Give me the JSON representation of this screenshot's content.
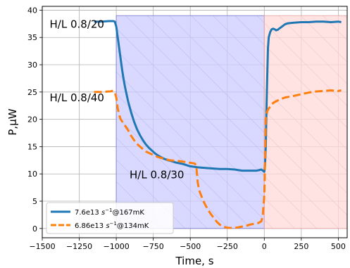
{
  "chart_data": {
    "type": "line",
    "xlabel": "Time, s",
    "ylabel": "P,μW",
    "xlim": [
      -1500,
      560
    ],
    "ylim": [
      -1.7,
      40.7
    ],
    "xticks": [
      -1500,
      -1250,
      -1000,
      -750,
      -500,
      -250,
      0,
      250,
      500
    ],
    "xtick_labels": [
      "−1500",
      "−1250",
      "−1000",
      "−750",
      "−500",
      "−250",
      "0",
      "250",
      "500"
    ],
    "yticks": [
      0,
      5,
      10,
      15,
      20,
      25,
      30,
      35,
      40
    ],
    "ytick_labels": [
      "0",
      "5",
      "10",
      "15",
      "20",
      "25",
      "30",
      "35",
      "40"
    ],
    "grid": true,
    "legend_position": "lower-left",
    "shaded_regions": [
      {
        "x0": -1000,
        "x1": 0,
        "y0": 0,
        "y1": 39,
        "color": "#ccccff",
        "hatch": true
      },
      {
        "x0": 0,
        "x1": 560,
        "y0": 0,
        "y1": 39,
        "color": "#ffd9d9",
        "hatch": true
      }
    ],
    "annotations": [
      {
        "text": "H/L 0.8/20",
        "x": -1450,
        "y": 36.8
      },
      {
        "text": "H/L 0.8/40",
        "x": -1450,
        "y": 23.3
      },
      {
        "text": "H/L 0.8/30",
        "x": -910,
        "y": 9.2
      }
    ],
    "series": [
      {
        "name_prefix": "7.6e13 ",
        "name_unit": "s",
        "name_exp": "−1",
        "name_suffix": "@167mK",
        "color": "#1f77b4",
        "dashed": false,
        "x": [
          -1150,
          -1100,
          -1050,
          -1030,
          -1020,
          -1010,
          -1000,
          -990,
          -980,
          -970,
          -960,
          -950,
          -940,
          -920,
          -900,
          -880,
          -860,
          -840,
          -820,
          -800,
          -780,
          -760,
          -740,
          -720,
          -700,
          -680,
          -650,
          -620,
          -600,
          -550,
          -500,
          -450,
          -400,
          -350,
          -300,
          -250,
          -200,
          -150,
          -100,
          -50,
          -20,
          -10,
          0,
          5,
          10,
          15,
          20,
          25,
          30,
          40,
          50,
          60,
          70,
          80,
          90,
          100,
          120,
          140,
          160,
          200,
          250,
          300,
          350,
          400,
          450,
          500,
          520
        ],
        "y": [
          37.9,
          37.9,
          38.0,
          38.0,
          38.0,
          37.9,
          37.0,
          35.0,
          33.0,
          31.0,
          29.0,
          27.3,
          25.8,
          23.3,
          21.3,
          19.6,
          18.2,
          17.1,
          16.2,
          15.4,
          14.8,
          14.3,
          13.8,
          13.4,
          13.1,
          12.8,
          12.5,
          12.3,
          12.1,
          11.8,
          11.4,
          11.2,
          11.1,
          11.0,
          10.9,
          10.9,
          10.8,
          10.6,
          10.6,
          10.6,
          10.8,
          10.6,
          10.4,
          11.5,
          15.0,
          22.0,
          28.0,
          33.0,
          35.0,
          36.0,
          36.5,
          36.6,
          36.5,
          36.3,
          36.4,
          36.6,
          37.0,
          37.4,
          37.6,
          37.7,
          37.8,
          37.8,
          37.9,
          37.9,
          37.8,
          37.9,
          37.8
        ]
      },
      {
        "name_prefix": "6.86e13 ",
        "name_unit": "s",
        "name_exp": "−1",
        "name_suffix": "@134mK",
        "color": "#ff7f0e",
        "dashed": true,
        "x": [
          -1150,
          -1100,
          -1050,
          -1040,
          -1030,
          -1020,
          -1010,
          -1000,
          -990,
          -980,
          -970,
          -960,
          -940,
          -920,
          -900,
          -880,
          -860,
          -840,
          -800,
          -760,
          -720,
          -680,
          -640,
          -600,
          -560,
          -520,
          -490,
          -470,
          -460,
          -455,
          -450,
          -440,
          -420,
          -400,
          -380,
          -360,
          -340,
          -320,
          -300,
          -280,
          -260,
          -240,
          -220,
          -200,
          -180,
          -160,
          -140,
          -120,
          -100,
          -80,
          -60,
          -40,
          -20,
          -10,
          0,
          5,
          10,
          20,
          30,
          40,
          60,
          80,
          100,
          140,
          200,
          250,
          300,
          350,
          400,
          450,
          500,
          520
        ],
        "y": [
          25.0,
          25.0,
          25.1,
          25.1,
          25.2,
          25.2,
          25.0,
          24.0,
          22.0,
          20.8,
          20.0,
          19.6,
          18.8,
          18.0,
          17.0,
          16.2,
          15.5,
          15.0,
          14.1,
          13.6,
          13.1,
          12.8,
          12.5,
          12.4,
          12.3,
          12.1,
          12.0,
          11.9,
          11.6,
          10.0,
          8.5,
          7.0,
          5.6,
          4.4,
          3.4,
          2.6,
          1.9,
          1.2,
          0.7,
          0.4,
          0.2,
          0.1,
          0.1,
          0.1,
          0.2,
          0.3,
          0.4,
          0.5,
          0.7,
          0.8,
          0.9,
          1.0,
          1.3,
          2.5,
          6.0,
          12.0,
          20.0,
          21.5,
          22.0,
          22.3,
          23.0,
          23.3,
          23.6,
          24.0,
          24.3,
          24.6,
          24.9,
          25.1,
          25.2,
          25.3,
          25.2,
          25.3
        ]
      }
    ]
  }
}
